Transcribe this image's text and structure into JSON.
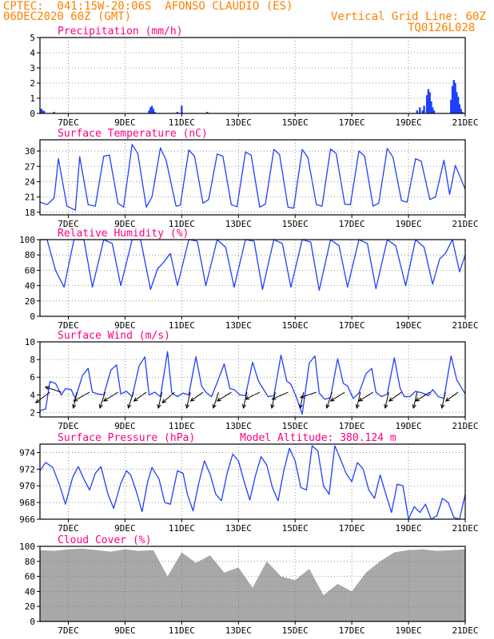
{
  "header": {
    "line1": "CPTEC:  041:15W-20:06S  AFONSO CLAUDIO (ES)",
    "line2": "06DEC2020 60Z (GMT)",
    "vgrid": "Vertical Grid Line: 60Z",
    "code": "TQ0126L028"
  },
  "x_ticks": [
    "7DEC",
    "9DEC",
    "11DEC",
    "13DEC",
    "15DEC",
    "17DEC",
    "19DEC",
    "21DEC"
  ],
  "colors": {
    "header": "#ff7f00",
    "title": "#ff0080",
    "line": "#1f3fff",
    "cloud": "#a8a8a8"
  },
  "chart_data": [
    {
      "id": "precip",
      "type": "bar",
      "title": "Precipitation (mm/h)",
      "ylim": [
        0,
        5
      ],
      "yticks": [
        "0",
        "1",
        "2",
        "3",
        "4",
        "5"
      ],
      "x_range_days": [
        6.0,
        21.0
      ],
      "series": [
        {
          "x": [
            6.05,
            6.1,
            6.15,
            6.5,
            9.85,
            9.9,
            9.95,
            10.0,
            10.05,
            10.85,
            11.0,
            11.9,
            19.3,
            19.4,
            19.5,
            19.55,
            19.65,
            19.7,
            19.75,
            19.8,
            19.85,
            19.9,
            20.5,
            20.55,
            20.6,
            20.65,
            20.7,
            20.75,
            20.8,
            20.85,
            20.9
          ],
          "values": [
            0.3,
            0.2,
            0.15,
            0.1,
            0.2,
            0.4,
            0.5,
            0.3,
            0.1,
            0.1,
            0.5,
            0.1,
            0.2,
            0.4,
            0.2,
            0.5,
            1.2,
            1.6,
            1.4,
            0.8,
            0.4,
            0.2,
            0.9,
            1.8,
            2.2,
            2.0,
            1.4,
            1.1,
            0.6,
            0.3,
            0.1
          ]
        }
      ]
    },
    {
      "id": "temp",
      "type": "line",
      "title": "Surface Temperature (nC)",
      "ylim": [
        17.5,
        32.2
      ],
      "yticks": [
        "18",
        "21",
        "24",
        "27",
        "30"
      ],
      "series": [
        {
          "x": [
            6.0,
            6.25,
            6.5,
            6.65,
            6.95,
            7.25,
            7.4,
            7.7,
            7.95,
            8.25,
            8.45,
            8.75,
            8.95,
            9.25,
            9.45,
            9.75,
            9.95,
            10.25,
            10.45,
            10.8,
            10.95,
            11.25,
            11.45,
            11.75,
            11.95,
            12.25,
            12.45,
            12.75,
            12.95,
            13.25,
            13.45,
            13.75,
            13.95,
            14.25,
            14.45,
            14.75,
            14.95,
            15.25,
            15.45,
            15.75,
            15.95,
            16.25,
            16.45,
            16.75,
            16.95,
            17.25,
            17.45,
            17.75,
            17.95,
            18.25,
            18.45,
            18.75,
            18.95,
            19.25,
            19.45,
            19.75,
            19.95,
            20.25,
            20.45,
            20.65,
            21.0
          ],
          "values": [
            20.0,
            19.5,
            20.8,
            28.5,
            19.2,
            18.4,
            28.9,
            19.5,
            19.2,
            29.0,
            29.2,
            19.8,
            19.0,
            31.3,
            29.5,
            19.0,
            21.0,
            30.6,
            28.2,
            19.2,
            19.4,
            30.2,
            29.0,
            19.8,
            20.5,
            29.4,
            29.0,
            19.5,
            19.1,
            29.8,
            29.2,
            19.0,
            19.6,
            30.3,
            29.3,
            19.0,
            18.8,
            30.3,
            28.7,
            19.5,
            19.2,
            30.4,
            29.5,
            19.6,
            19.5,
            30.0,
            29.0,
            19.2,
            19.8,
            30.5,
            28.8,
            20.3,
            20.0,
            28.5,
            28.0,
            20.5,
            21.0,
            28.2,
            21.5,
            27.2,
            22.5
          ]
        }
      ]
    },
    {
      "id": "rh",
      "type": "line",
      "title": "Relative Humidity (%)",
      "ylim": [
        0,
        100
      ],
      "yticks": [
        "0",
        "20",
        "40",
        "60",
        "80",
        "100"
      ],
      "series": [
        {
          "x": [
            6.0,
            6.25,
            6.55,
            6.85,
            7.2,
            7.55,
            7.85,
            8.25,
            8.55,
            8.85,
            9.25,
            9.55,
            9.9,
            10.15,
            10.35,
            10.6,
            10.85,
            11.25,
            11.55,
            11.85,
            12.25,
            12.55,
            12.85,
            13.25,
            13.55,
            13.85,
            14.25,
            14.55,
            14.85,
            15.25,
            15.55,
            15.85,
            16.25,
            16.55,
            16.85,
            17.25,
            17.55,
            17.85,
            18.25,
            18.55,
            18.9,
            19.25,
            19.55,
            19.85,
            20.1,
            20.3,
            20.55,
            20.8,
            21.0
          ],
          "values": [
            100,
            100,
            60,
            38,
            100,
            100,
            38,
            100,
            95,
            40,
            100,
            100,
            35,
            62,
            70,
            82,
            40,
            100,
            98,
            40,
            100,
            90,
            38,
            100,
            98,
            35,
            100,
            95,
            38,
            100,
            97,
            34,
            100,
            92,
            38,
            100,
            95,
            36,
            100,
            92,
            40,
            100,
            90,
            42,
            75,
            82,
            100,
            58,
            80
          ]
        }
      ]
    },
    {
      "id": "wind",
      "type": "line",
      "title": "Surface Wind (m/s)",
      "ylim": [
        1.5,
        10
      ],
      "yticks": [
        "2",
        "4",
        "6",
        "8",
        "10"
      ],
      "series": [
        {
          "x": [
            6.0,
            6.2,
            6.35,
            6.55,
            6.75,
            6.9,
            7.1,
            7.25,
            7.5,
            7.7,
            7.85,
            8.05,
            8.25,
            8.5,
            8.7,
            8.85,
            9.05,
            9.25,
            9.5,
            9.7,
            9.85,
            10.05,
            10.25,
            10.5,
            10.65,
            10.85,
            11.05,
            11.25,
            11.5,
            11.7,
            11.85,
            12.05,
            12.25,
            12.5,
            12.7,
            12.85,
            13.05,
            13.25,
            13.5,
            13.7,
            13.85,
            14.05,
            14.25,
            14.5,
            14.7,
            14.85,
            15.05,
            15.25,
            15.5,
            15.7,
            15.85,
            16.05,
            16.25,
            16.5,
            16.7,
            16.85,
            17.05,
            17.25,
            17.5,
            17.7,
            17.85,
            18.05,
            18.25,
            18.5,
            18.7,
            18.85,
            19.05,
            19.25,
            19.5,
            19.7,
            19.85,
            20.05,
            20.25,
            20.5,
            20.7,
            20.85,
            21.0
          ],
          "values": [
            2.2,
            2.4,
            5.5,
            5.3,
            4.0,
            4.7,
            4.6,
            3.6,
            6.2,
            7.0,
            4.3,
            4.1,
            4.0,
            6.8,
            7.4,
            4.1,
            4.4,
            3.8,
            7.3,
            8.3,
            4.0,
            4.3,
            3.8,
            8.9,
            4.2,
            3.8,
            4.2,
            4.0,
            8.3,
            5.0,
            4.3,
            3.8,
            5.4,
            7.5,
            4.7,
            4.6,
            4.0,
            3.9,
            7.7,
            5.6,
            4.8,
            3.8,
            3.9,
            8.5,
            5.6,
            5.2,
            3.7,
            1.8,
            7.6,
            8.4,
            4.2,
            3.5,
            3.7,
            8.1,
            5.3,
            5.0,
            3.6,
            4.2,
            6.4,
            7.0,
            4.3,
            3.8,
            4.1,
            8.2,
            4.8,
            3.8,
            3.8,
            4.4,
            4.2,
            3.9,
            4.6,
            3.8,
            3.6,
            8.4,
            5.7,
            4.9,
            4.1
          ]
        }
      ],
      "arrows": {
        "x": [
          6.35,
          6.75,
          7.3,
          7.75,
          8.3,
          8.75,
          9.3,
          9.75,
          10.3,
          10.75,
          11.3,
          11.75,
          12.3,
          12.75,
          13.3,
          13.75,
          14.3,
          14.75,
          15.3,
          15.75,
          16.3,
          16.75,
          17.3,
          17.75,
          18.3,
          18.75,
          19.3,
          19.75,
          20.3,
          20.75
        ],
        "u": [
          -0.8,
          -0.9,
          -0.2,
          -0.9,
          -0.3,
          -0.8,
          -0.3,
          -0.7,
          -0.2,
          -0.7,
          -0.2,
          -0.7,
          -0.3,
          -0.8,
          -0.2,
          -0.8,
          -0.2,
          -0.9,
          -0.2,
          -0.9,
          -0.3,
          -0.8,
          -0.2,
          -0.8,
          -0.2,
          -0.7,
          -0.2,
          -0.8,
          -0.2,
          -0.7
        ],
        "v": [
          -0.6,
          0.3,
          -0.9,
          -0.5,
          -0.9,
          -0.5,
          -0.9,
          -0.5,
          -0.9,
          -0.6,
          -0.9,
          -0.5,
          -0.9,
          -0.5,
          -0.9,
          -0.4,
          -0.9,
          -0.4,
          -0.9,
          -0.3,
          -0.9,
          -0.5,
          -0.9,
          -0.5,
          -0.9,
          -0.5,
          -0.9,
          -0.5,
          -0.9,
          -0.5
        ]
      }
    },
    {
      "id": "pressure",
      "type": "line",
      "title": "Surface Pressure (hPa)",
      "annotation": "Model Altitude: 380.124 m",
      "ylim": [
        966,
        975
      ],
      "yticks": [
        "966",
        "968",
        "970",
        "972",
        "974"
      ],
      "series": [
        {
          "x": [
            6.0,
            6.2,
            6.45,
            6.7,
            6.9,
            7.15,
            7.35,
            7.55,
            7.75,
            7.95,
            8.15,
            8.4,
            8.6,
            8.85,
            9.05,
            9.2,
            9.4,
            9.6,
            9.8,
            9.95,
            10.2,
            10.4,
            10.6,
            10.85,
            11.05,
            11.2,
            11.4,
            11.6,
            11.8,
            12.0,
            12.2,
            12.4,
            12.6,
            12.8,
            13.0,
            13.2,
            13.4,
            13.6,
            13.8,
            14.0,
            14.2,
            14.4,
            14.6,
            14.8,
            15.0,
            15.2,
            15.4,
            15.6,
            15.8,
            16.0,
            16.2,
            16.4,
            16.6,
            16.8,
            17.0,
            17.2,
            17.4,
            17.6,
            17.8,
            18.0,
            18.2,
            18.4,
            18.6,
            18.8,
            19.0,
            19.2,
            19.4,
            19.6,
            19.8,
            20.0,
            20.2,
            20.4,
            20.6,
            20.8,
            21.0
          ],
          "values": [
            971.8,
            972.8,
            972.2,
            970.0,
            967.8,
            971.0,
            972.3,
            970.8,
            969.5,
            971.5,
            972.3,
            969.0,
            967.3,
            970.3,
            971.8,
            971.3,
            969.3,
            966.9,
            970.5,
            972.2,
            970.8,
            968.0,
            967.8,
            971.8,
            971.5,
            969.0,
            967.0,
            970.3,
            973.0,
            971.4,
            969.0,
            968.2,
            971.5,
            973.8,
            973.0,
            970.5,
            968.3,
            971.2,
            973.5,
            972.5,
            969.8,
            968.2,
            971.8,
            974.5,
            973.0,
            969.8,
            969.5,
            974.8,
            974.2,
            970.0,
            969.0,
            974.8,
            973.2,
            971.5,
            970.5,
            972.8,
            972.0,
            969.5,
            968.5,
            971.3,
            969.0,
            966.8,
            970.2,
            970.0,
            966.0,
            967.5,
            966.8,
            967.8,
            966.0,
            966.4,
            968.5,
            968.0,
            966.2,
            966.0,
            969.0
          ]
        }
      ]
    },
    {
      "id": "cloud",
      "type": "area",
      "title": "Cloud Cover (%)",
      "ylim": [
        0,
        100
      ],
      "yticks": [
        "0",
        "20",
        "40",
        "60",
        "80",
        "100"
      ],
      "series": [
        {
          "x": [
            6.0,
            6.5,
            7.0,
            7.5,
            8.0,
            8.5,
            9.0,
            9.5,
            10.0,
            10.5,
            11.0,
            11.5,
            12.0,
            12.5,
            13.0,
            13.5,
            14.0,
            14.5,
            15.0,
            15.5,
            16.0,
            16.5,
            17.0,
            17.5,
            18.0,
            18.5,
            19.0,
            19.5,
            20.0,
            20.5,
            21.0
          ],
          "values": [
            95,
            94,
            96,
            97,
            95,
            93,
            96,
            94,
            95,
            60,
            92,
            78,
            88,
            65,
            72,
            45,
            80,
            60,
            55,
            70,
            35,
            50,
            40,
            65,
            80,
            92,
            95,
            96,
            94,
            95,
            96
          ]
        }
      ]
    }
  ]
}
